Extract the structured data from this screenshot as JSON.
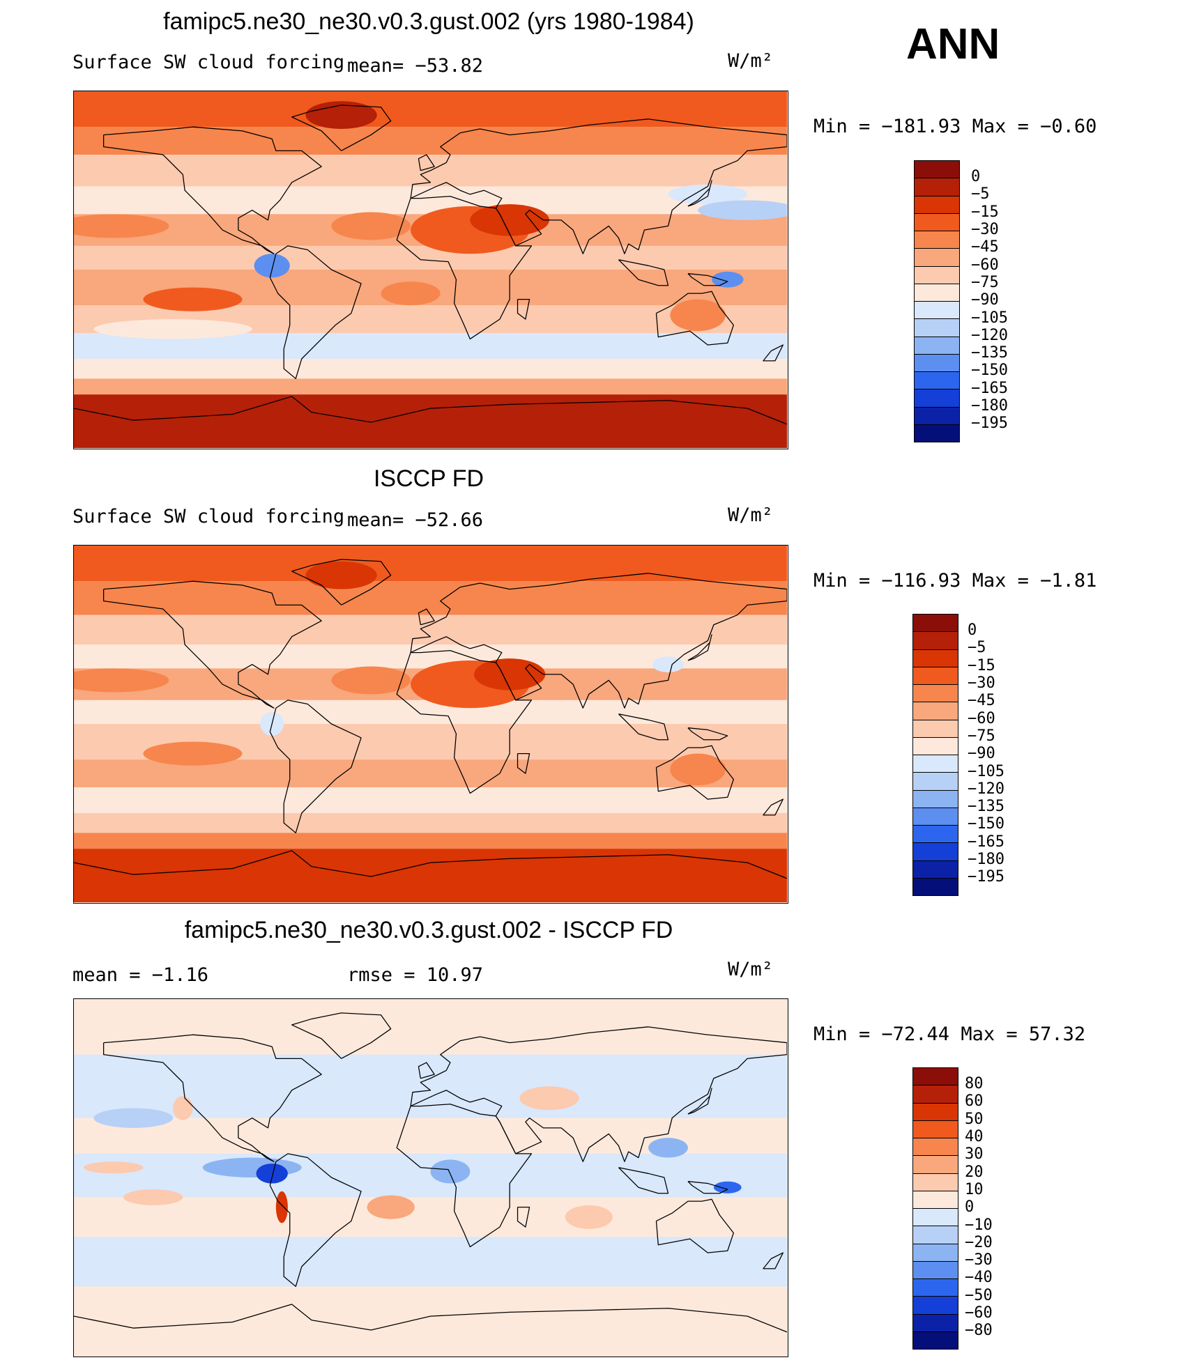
{
  "season": "ANN",
  "units": "W/m²",
  "chart_data": [
    {
      "type": "heatmap",
      "title": "famipc5.ne30_ne30.v0.3.gust.002 (yrs 1980-1984)",
      "variable": "Surface SW cloud forcing",
      "mean_text": "mean= −53.82",
      "units": "W/m²",
      "minmax_text": "Min = −181.93 Max =  −0.60",
      "min": -181.93,
      "max": -0.6,
      "mean": -53.82,
      "levels": [
        "0",
        "−5",
        "−15",
        "−30",
        "−45",
        "−60",
        "−75",
        "−90",
        "−105",
        "−120",
        "−135",
        "−150",
        "−165",
        "−180",
        "−195"
      ],
      "colors": [
        "#8b0f08",
        "#b52008",
        "#d93505",
        "#f05a1e",
        "#f6864d",
        "#f9a77c",
        "#fccaaf",
        "#fde9dc",
        "#d9e8fb",
        "#b7d0f6",
        "#8cb4f2",
        "#5c8ff0",
        "#2d66ee",
        "#1440d8",
        "#0b22a8",
        "#050f7a"
      ],
      "zones": [
        {
          "lat_max": 90,
          "lat_min": 72,
          "value": -20
        },
        {
          "lat_max": 72,
          "lat_min": 58,
          "value": -40
        },
        {
          "lat_max": 58,
          "lat_min": 42,
          "value": -62
        },
        {
          "lat_max": 42,
          "lat_min": 28,
          "value": -88
        },
        {
          "lat_max": 28,
          "lat_min": 12,
          "value": -55
        },
        {
          "lat_max": 12,
          "lat_min": 0,
          "value": -75
        },
        {
          "lat_max": 0,
          "lat_min": -18,
          "value": -60
        },
        {
          "lat_max": -18,
          "lat_min": -32,
          "value": -65
        },
        {
          "lat_max": -32,
          "lat_min": -45,
          "value": -98
        },
        {
          "lat_max": -45,
          "lat_min": -55,
          "value": -80
        },
        {
          "lat_max": -55,
          "lat_min": -63,
          "value": -50
        },
        {
          "lat_max": -63,
          "lat_min": -90,
          "value": -4
        }
      ],
      "features": [
        {
          "lon": 140,
          "lat": 38,
          "rlon": 20,
          "rlat": 5,
          "value": -95
        },
        {
          "lon": -160,
          "lat": 22,
          "rlon": 28,
          "rlat": 6,
          "value": -40
        },
        {
          "lon": -120,
          "lat": -15,
          "rlon": 25,
          "rlat": 6,
          "value": -30
        },
        {
          "lon": -80,
          "lat": 2,
          "rlon": 9,
          "rlat": 6,
          "value": -140
        },
        {
          "lon": 150,
          "lat": -5,
          "rlon": 8,
          "rlat": 4,
          "value": -150
        },
        {
          "lon": 20,
          "lat": 20,
          "rlon": 30,
          "rlat": 12,
          "value": -20
        },
        {
          "lon": 135,
          "lat": -23,
          "rlon": 14,
          "rlat": 8,
          "value": -35
        },
        {
          "lon": 40,
          "lat": 25,
          "rlon": 20,
          "rlat": 8,
          "value": -10
        },
        {
          "lon": 160,
          "lat": 30,
          "rlon": 25,
          "rlat": 5,
          "value": -110
        },
        {
          "lon": -130,
          "lat": -30,
          "rlon": 40,
          "rlat": 5,
          "value": -80
        },
        {
          "lon": -45,
          "lat": 78,
          "rlon": 18,
          "rlat": 7,
          "value": -5
        },
        {
          "lon": -30,
          "lat": 22,
          "rlon": 20,
          "rlat": 7,
          "value": -40
        },
        {
          "lon": -10,
          "lat": -12,
          "rlon": 15,
          "rlat": 6,
          "value": -40
        }
      ]
    },
    {
      "type": "heatmap",
      "title": "ISCCP FD",
      "variable": "Surface SW cloud forcing",
      "mean_text": "mean= −52.66",
      "units": "W/m²",
      "minmax_text": "Min = −116.93 Max =  −1.81",
      "min": -116.93,
      "max": -1.81,
      "mean": -52.66,
      "levels": [
        "0",
        "−5",
        "−15",
        "−30",
        "−45",
        "−60",
        "−75",
        "−90",
        "−105",
        "−120",
        "−135",
        "−150",
        "−165",
        "−180",
        "−195"
      ],
      "colors": [
        "#8b0f08",
        "#b52008",
        "#d93505",
        "#f05a1e",
        "#f6864d",
        "#f9a77c",
        "#fccaaf",
        "#fde9dc",
        "#d9e8fb",
        "#b7d0f6",
        "#8cb4f2",
        "#5c8ff0",
        "#2d66ee",
        "#1440d8",
        "#0b22a8",
        "#050f7a"
      ],
      "zones": [
        {
          "lat_max": 90,
          "lat_min": 72,
          "value": -25
        },
        {
          "lat_max": 72,
          "lat_min": 55,
          "value": -40
        },
        {
          "lat_max": 55,
          "lat_min": 40,
          "value": -70
        },
        {
          "lat_max": 40,
          "lat_min": 28,
          "value": -85
        },
        {
          "lat_max": 28,
          "lat_min": 12,
          "value": -55
        },
        {
          "lat_max": 12,
          "lat_min": 0,
          "value": -80
        },
        {
          "lat_max": 0,
          "lat_min": -18,
          "value": -62
        },
        {
          "lat_max": -18,
          "lat_min": -32,
          "value": -60
        },
        {
          "lat_max": -32,
          "lat_min": -45,
          "value": -80
        },
        {
          "lat_max": -45,
          "lat_min": -55,
          "value": -70
        },
        {
          "lat_max": -55,
          "lat_min": -63,
          "value": -40
        },
        {
          "lat_max": -63,
          "lat_min": -90,
          "value": -10
        }
      ],
      "features": [
        {
          "lon": -160,
          "lat": 22,
          "rlon": 28,
          "rlat": 6,
          "value": -40
        },
        {
          "lon": -120,
          "lat": -15,
          "rlon": 25,
          "rlat": 6,
          "value": -35
        },
        {
          "lon": 20,
          "lat": 20,
          "rlon": 30,
          "rlat": 12,
          "value": -25
        },
        {
          "lon": 40,
          "lat": 25,
          "rlon": 18,
          "rlat": 8,
          "value": -15
        },
        {
          "lon": 135,
          "lat": -23,
          "rlon": 14,
          "rlat": 8,
          "value": -35
        },
        {
          "lon": -80,
          "lat": 0,
          "rlon": 6,
          "rlat": 6,
          "value": -100
        },
        {
          "lon": -45,
          "lat": 75,
          "rlon": 18,
          "rlat": 7,
          "value": -15
        },
        {
          "lon": 120,
          "lat": 30,
          "rlon": 8,
          "rlat": 4,
          "value": -100
        },
        {
          "lon": -30,
          "lat": 22,
          "rlon": 20,
          "rlat": 7,
          "value": -40
        }
      ]
    },
    {
      "type": "heatmap",
      "title": "famipc5.ne30_ne30.v0.3.gust.002 - ISCCP FD",
      "mean_text": "mean =   −1.16",
      "rmse_text": "rmse =   10.97",
      "units": "W/m²",
      "minmax_text": "Min = −72.44 Max =  57.32",
      "min": -72.44,
      "max": 57.32,
      "mean": -1.16,
      "rmse": 10.97,
      "levels": [
        "80",
        "60",
        "50",
        "40",
        "30",
        "20",
        "10",
        "0",
        "−10",
        "−20",
        "−30",
        "−40",
        "−50",
        "−60",
        "−80"
      ],
      "colors": [
        "#8b0f08",
        "#b52008",
        "#d93505",
        "#f05a1e",
        "#f6864d",
        "#f9a77c",
        "#fccaaf",
        "#fde9dc",
        "#d9e8fb",
        "#b7d0f6",
        "#8cb4f2",
        "#5c8ff0",
        "#2d66ee",
        "#1440d8",
        "#0b22a8",
        "#050f7a"
      ],
      "zones": [
        {
          "lat_max": 90,
          "lat_min": 62,
          "value": 5
        },
        {
          "lat_max": 62,
          "lat_min": 45,
          "value": -5
        },
        {
          "lat_max": 45,
          "lat_min": 30,
          "value": -5
        },
        {
          "lat_max": 30,
          "lat_min": 12,
          "value": 3
        },
        {
          "lat_max": 12,
          "lat_min": -10,
          "value": -5
        },
        {
          "lat_max": -10,
          "lat_min": -30,
          "value": 3
        },
        {
          "lat_max": -30,
          "lat_min": -55,
          "value": -5
        },
        {
          "lat_max": -55,
          "lat_min": -90,
          "value": 5
        }
      ],
      "features": [
        {
          "lon": -90,
          "lat": 5,
          "rlon": 25,
          "rlat": 5,
          "value": -25
        },
        {
          "lon": -80,
          "lat": 2,
          "rlon": 8,
          "rlat": 5,
          "value": -55
        },
        {
          "lon": 150,
          "lat": -5,
          "rlon": 7,
          "rlat": 3,
          "value": -50
        },
        {
          "lon": 10,
          "lat": 3,
          "rlon": 10,
          "rlat": 6,
          "value": -30
        },
        {
          "lon": -75,
          "lat": -15,
          "rlon": 3,
          "rlat": 8,
          "value": 55
        },
        {
          "lon": -20,
          "lat": -15,
          "rlon": 12,
          "rlat": 6,
          "value": 25
        },
        {
          "lon": 80,
          "lat": -20,
          "rlon": 12,
          "rlat": 6,
          "value": 15
        },
        {
          "lon": -140,
          "lat": -10,
          "rlon": 15,
          "rlat": 4,
          "value": 15
        },
        {
          "lon": 60,
          "lat": 40,
          "rlon": 15,
          "rlat": 6,
          "value": 15
        },
        {
          "lon": -150,
          "lat": 30,
          "rlon": 20,
          "rlat": 5,
          "value": -15
        },
        {
          "lon": 120,
          "lat": 15,
          "rlon": 10,
          "rlat": 5,
          "value": -25
        },
        {
          "lon": -160,
          "lat": 5,
          "rlon": 15,
          "rlat": 3,
          "value": 12
        },
        {
          "lon": -125,
          "lat": 35,
          "rlon": 5,
          "rlat": 6,
          "value": 15
        }
      ]
    }
  ]
}
